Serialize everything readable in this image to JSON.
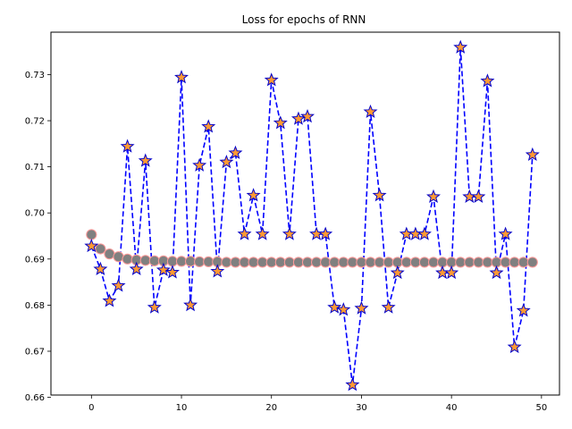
{
  "chart_data": {
    "type": "line",
    "title": "Loss for epochs of RNN",
    "xlabel": "",
    "ylabel": "",
    "xlim": [
      -4.5,
      52.0
    ],
    "ylim": [
      0.6605,
      0.7392
    ],
    "x_ticks": [
      0,
      10,
      20,
      30,
      40,
      50
    ],
    "y_ticks": [
      0.66,
      0.67,
      0.68,
      0.69,
      0.7,
      0.71,
      0.72,
      0.73
    ],
    "y_tick_labels": [
      "0.66",
      "0.67",
      "0.68",
      "0.69",
      "0.70",
      "0.71",
      "0.72",
      "0.73"
    ],
    "grid": false,
    "legend": "none",
    "x": [
      0,
      1,
      2,
      3,
      4,
      5,
      6,
      7,
      8,
      9,
      10,
      11,
      12,
      13,
      14,
      15,
      16,
      17,
      18,
      19,
      20,
      21,
      22,
      23,
      24,
      25,
      26,
      27,
      28,
      29,
      30,
      31,
      32,
      33,
      34,
      35,
      36,
      37,
      38,
      39,
      40,
      41,
      42,
      43,
      44,
      45,
      46,
      47,
      48,
      49
    ],
    "series": [
      {
        "style": "blue dashed line with orange star markers",
        "line_color": "#0000ff",
        "marker_fill": "#ff9933",
        "marker_edge": "#0000cc",
        "values": [
          0.6928,
          0.6878,
          0.6809,
          0.6842,
          0.7144,
          0.6878,
          0.7113,
          0.6795,
          0.6876,
          0.6871,
          0.7294,
          0.68,
          0.7103,
          0.7187,
          0.6873,
          0.711,
          0.713,
          0.6954,
          0.7038,
          0.6954,
          0.7288,
          0.7195,
          0.6954,
          0.7204,
          0.7209,
          0.6954,
          0.6954,
          0.6795,
          0.679,
          0.6627,
          0.6793,
          0.7219,
          0.7038,
          0.6795,
          0.687,
          0.6954,
          0.6954,
          0.6954,
          0.7035,
          0.687,
          0.687,
          0.7359,
          0.7035,
          0.7035,
          0.7286,
          0.687,
          0.6954,
          0.6709,
          0.6788,
          0.7126
        ]
      },
      {
        "style": "grey circle markers with pink edge",
        "marker_fill": "#808080",
        "marker_edge": "#ff9999",
        "values": [
          0.6953,
          0.6922,
          0.6911,
          0.6905,
          0.69,
          0.6898,
          0.6897,
          0.6896,
          0.6896,
          0.6895,
          0.6895,
          0.6895,
          0.6894,
          0.6894,
          0.6894,
          0.6893,
          0.6893,
          0.6893,
          0.6893,
          0.6893,
          0.6893,
          0.6893,
          0.6893,
          0.6893,
          0.6893,
          0.6893,
          0.6893,
          0.6893,
          0.6893,
          0.6893,
          0.6893,
          0.6893,
          0.6893,
          0.6893,
          0.6893,
          0.6893,
          0.6893,
          0.6893,
          0.6893,
          0.6893,
          0.6893,
          0.6893,
          0.6893,
          0.6893,
          0.6893,
          0.6893,
          0.6893,
          0.6893,
          0.6893,
          0.6893
        ]
      }
    ]
  }
}
